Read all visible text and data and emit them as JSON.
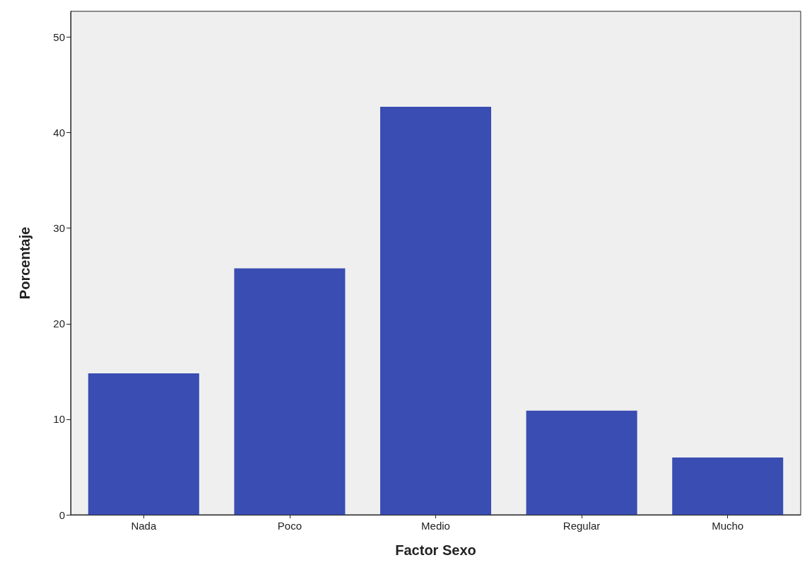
{
  "chart_data": {
    "type": "bar",
    "xlabel": "Factor Sexo",
    "ylabel": "Porcentaje",
    "categories": [
      "Nada",
      "Poco",
      "Medio",
      "Regular",
      "Mucho"
    ],
    "values": [
      14.8,
      25.8,
      42.7,
      10.9,
      6.0
    ],
    "color": "#3a4db2",
    "ylim": [
      0,
      52.7
    ],
    "yticks": [
      0,
      10,
      20,
      30,
      40,
      50
    ],
    "grid": false
  }
}
